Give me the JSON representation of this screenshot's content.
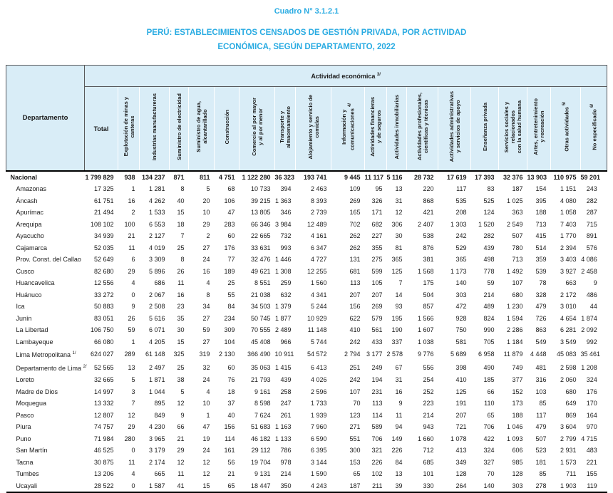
{
  "titles": {
    "cuadro": "Cuadro N° 3.1.2.1",
    "main": "PERÚ: ESTABLECIMIENTOS CENSADOS DE GESTIÓN PRIVADA, POR ACTIVIDAD\nECONÓMICA, SEGÚN DEPARTAMENTO, 2022"
  },
  "colors": {
    "title_blue": "#29abe2",
    "header_bg": "#d9edf7"
  },
  "table": {
    "department_header": "Departamento",
    "activity_header": {
      "label": "Actividad económica ",
      "sup": "3/"
    },
    "total_label": "Total",
    "columns": [
      {
        "label": "Explotación de minas y\ncanteras",
        "sup": ""
      },
      {
        "label": "Industrias manufactureras",
        "sup": ""
      },
      {
        "label": "Suministro de electricidad",
        "sup": ""
      },
      {
        "label": "Suministro de agua,\nalcantarillado",
        "sup": ""
      },
      {
        "label": "Construcción",
        "sup": ""
      },
      {
        "label": "Comercio al por mayor\ny al por menor",
        "sup": ""
      },
      {
        "label": "Transporte y\nalmacenamiento",
        "sup": ""
      },
      {
        "label": "Alojamiento y servicio de\ncomidas",
        "sup": ""
      },
      {
        "label": "Información y\ncomunicaciones ",
        "sup": "4/"
      },
      {
        "label": "Actividades financieras\ny de seguros",
        "sup": ""
      },
      {
        "label": "Actividades inmobiliarias",
        "sup": ""
      },
      {
        "label": "Actividades profesionales,\ncientíficas y técnicas",
        "sup": ""
      },
      {
        "label": "Actividades administrativas\ny servicios de apoyo",
        "sup": ""
      },
      {
        "label": "Enseñanza privada",
        "sup": ""
      },
      {
        "label": "Servicios sociales y\nrelacionados\ncon la salud humana",
        "sup": ""
      },
      {
        "label": "Artes, entretenimiento\ny recreación",
        "sup": ""
      },
      {
        "label": "Otras actividades ",
        "sup": "5/"
      },
      {
        "label": "No especificado ",
        "sup": "6/"
      }
    ],
    "rows": [
      {
        "name": "Nacional",
        "sup": "",
        "bold": true,
        "values": [
          "1 799 829",
          "938",
          "134 237",
          "871",
          "811",
          "4 751",
          "1 122 280",
          "36 323",
          "193 741",
          "9 445",
          "11 117",
          "5 116",
          "28 732",
          "17 619",
          "17 393",
          "32 376",
          "13 903",
          "110 975",
          "59 201"
        ]
      },
      {
        "name": "Amazonas",
        "sup": "",
        "bold": false,
        "values": [
          "17 325",
          "1",
          "1 281",
          "8",
          "5",
          "68",
          "10 733",
          "394",
          "2 463",
          "109",
          "95",
          "13",
          "220",
          "117",
          "83",
          "187",
          "154",
          "1 151",
          "243"
        ]
      },
      {
        "name": "Áncash",
        "sup": "",
        "bold": false,
        "values": [
          "61 751",
          "16",
          "4 262",
          "40",
          "20",
          "106",
          "39 215",
          "1 363",
          "8 393",
          "269",
          "326",
          "31",
          "868",
          "535",
          "525",
          "1 025",
          "395",
          "4 080",
          "282"
        ]
      },
      {
        "name": "Apurímac",
        "sup": "",
        "bold": false,
        "values": [
          "21 494",
          "2",
          "1 533",
          "15",
          "10",
          "47",
          "13 805",
          "346",
          "2 739",
          "165",
          "171",
          "12",
          "421",
          "208",
          "124",
          "363",
          "188",
          "1 058",
          "287"
        ]
      },
      {
        "name": "Arequipa",
        "sup": "",
        "bold": false,
        "values": [
          "108 102",
          "100",
          "6 553",
          "18",
          "29",
          "283",
          "66 346",
          "3 984",
          "12 489",
          "702",
          "682",
          "306",
          "2 407",
          "1 303",
          "1 520",
          "2 549",
          "713",
          "7 403",
          "715"
        ]
      },
      {
        "name": "Ayacucho",
        "sup": "",
        "bold": false,
        "values": [
          "34 939",
          "21",
          "2 127",
          "7",
          "2",
          "60",
          "22 665",
          "732",
          "4 161",
          "262",
          "227",
          "30",
          "538",
          "242",
          "282",
          "507",
          "415",
          "1 770",
          "891"
        ]
      },
      {
        "name": "Cajamarca",
        "sup": "",
        "bold": false,
        "values": [
          "52 035",
          "11",
          "4 019",
          "25",
          "27",
          "176",
          "33 631",
          "993",
          "6 347",
          "262",
          "355",
          "81",
          "876",
          "529",
          "439",
          "780",
          "514",
          "2 394",
          "576"
        ]
      },
      {
        "name": "Prov. Const. del Callao",
        "sup": "",
        "bold": false,
        "values": [
          "52 649",
          "6",
          "3 309",
          "8",
          "24",
          "77",
          "32 476",
          "1 446",
          "4 727",
          "131",
          "275",
          "365",
          "381",
          "365",
          "498",
          "713",
          "359",
          "3 403",
          "4 086"
        ]
      },
      {
        "name": "Cusco",
        "sup": "",
        "bold": false,
        "values": [
          "82 680",
          "29",
          "5 896",
          "26",
          "16",
          "189",
          "49 621",
          "1 308",
          "12 255",
          "681",
          "599",
          "125",
          "1 568",
          "1 173",
          "778",
          "1 492",
          "539",
          "3 927",
          "2 458"
        ]
      },
      {
        "name": "Huancavelica",
        "sup": "",
        "bold": false,
        "values": [
          "12 556",
          "4",
          "686",
          "11",
          "4",
          "25",
          "8 551",
          "259",
          "1 560",
          "113",
          "105",
          "7",
          "175",
          "140",
          "59",
          "107",
          "78",
          "663",
          "9"
        ]
      },
      {
        "name": "Huánuco",
        "sup": "",
        "bold": false,
        "values": [
          "33 272",
          "0",
          "2 067",
          "16",
          "8",
          "55",
          "21 038",
          "632",
          "4 341",
          "207",
          "207",
          "14",
          "504",
          "303",
          "214",
          "680",
          "328",
          "2 172",
          "486"
        ]
      },
      {
        "name": "Ica",
        "sup": "",
        "bold": false,
        "values": [
          "50 883",
          "9",
          "2 508",
          "23",
          "34",
          "84",
          "34 503",
          "1 379",
          "5 244",
          "156",
          "269",
          "93",
          "857",
          "472",
          "489",
          "1 230",
          "479",
          "3 010",
          "44"
        ]
      },
      {
        "name": "Junín",
        "sup": "",
        "bold": false,
        "values": [
          "83 051",
          "26",
          "5 616",
          "35",
          "27",
          "234",
          "50 745",
          "1 877",
          "10 929",
          "622",
          "579",
          "195",
          "1 566",
          "928",
          "824",
          "1 594",
          "726",
          "4 654",
          "1 874"
        ]
      },
      {
        "name": "La Libertad",
        "sup": "",
        "bold": false,
        "values": [
          "106 750",
          "59",
          "6 071",
          "30",
          "59",
          "309",
          "70 555",
          "2 489",
          "11 148",
          "410",
          "561",
          "190",
          "1 607",
          "750",
          "990",
          "2 286",
          "863",
          "6 281",
          "2 092"
        ]
      },
      {
        "name": "Lambayeque",
        "sup": "",
        "bold": false,
        "values": [
          "66 080",
          "1",
          "4 205",
          "15",
          "27",
          "104",
          "45 408",
          "966",
          "5 744",
          "242",
          "433",
          "337",
          "1 038",
          "581",
          "705",
          "1 184",
          "549",
          "3 549",
          "992"
        ]
      },
      {
        "name": "Lima Metropolitana ",
        "sup": "1/",
        "bold": false,
        "values": [
          "624 027",
          "289",
          "61 148",
          "325",
          "319",
          "2 130",
          "366 490",
          "10 911",
          "54 572",
          "2 794",
          "3 177",
          "2 578",
          "9 776",
          "5 689",
          "6 958",
          "11 879",
          "4 448",
          "45 083",
          "35 461"
        ]
      },
      {
        "name": "Departamento de Lima ",
        "sup": "2/",
        "bold": false,
        "values": [
          "52 565",
          "13",
          "2 497",
          "25",
          "32",
          "60",
          "35 063",
          "1 415",
          "6 413",
          "251",
          "249",
          "67",
          "556",
          "398",
          "490",
          "749",
          "481",
          "2 598",
          "1 208"
        ]
      },
      {
        "name": "Loreto",
        "sup": "",
        "bold": false,
        "values": [
          "32 665",
          "5",
          "1 871",
          "38",
          "24",
          "76",
          "21 793",
          "439",
          "4 026",
          "242",
          "194",
          "31",
          "254",
          "410",
          "185",
          "377",
          "316",
          "2 060",
          "324"
        ]
      },
      {
        "name": "Madre de Dios",
        "sup": "",
        "bold": false,
        "values": [
          "14 997",
          "3",
          "1 044",
          "5",
          "4",
          "18",
          "9 161",
          "258",
          "2 596",
          "107",
          "231",
          "16",
          "252",
          "125",
          "66",
          "152",
          "103",
          "680",
          "176"
        ]
      },
      {
        "name": "Moquegua",
        "sup": "",
        "bold": false,
        "values": [
          "13 332",
          "7",
          "895",
          "12",
          "10",
          "37",
          "8 598",
          "247",
          "1 733",
          "70",
          "113",
          "9",
          "223",
          "191",
          "110",
          "173",
          "85",
          "649",
          "170"
        ]
      },
      {
        "name": "Pasco",
        "sup": "",
        "bold": false,
        "values": [
          "12 807",
          "12",
          "849",
          "9",
          "1",
          "40",
          "7 624",
          "261",
          "1 939",
          "123",
          "114",
          "11",
          "214",
          "207",
          "65",
          "188",
          "117",
          "869",
          "164"
        ]
      },
      {
        "name": "Piura",
        "sup": "",
        "bold": false,
        "values": [
          "74 757",
          "29",
          "4 230",
          "66",
          "47",
          "156",
          "51 683",
          "1 163",
          "7 960",
          "271",
          "589",
          "94",
          "943",
          "721",
          "706",
          "1 046",
          "479",
          "3 604",
          "970"
        ]
      },
      {
        "name": "Puno",
        "sup": "",
        "bold": false,
        "values": [
          "71 984",
          "280",
          "3 965",
          "21",
          "19",
          "114",
          "46 182",
          "1 133",
          "6 590",
          "551",
          "706",
          "149",
          "1 660",
          "1 078",
          "422",
          "1 093",
          "507",
          "2 799",
          "4 715"
        ]
      },
      {
        "name": "San Martín",
        "sup": "",
        "bold": false,
        "values": [
          "46 525",
          "0",
          "3 179",
          "29",
          "24",
          "161",
          "29 112",
          "786",
          "6 395",
          "300",
          "321",
          "226",
          "712",
          "413",
          "324",
          "606",
          "523",
          "2 931",
          "483"
        ]
      },
      {
        "name": "Tacna",
        "sup": "",
        "bold": false,
        "values": [
          "30 875",
          "11",
          "2 174",
          "12",
          "12",
          "56",
          "19 704",
          "978",
          "3 144",
          "153",
          "226",
          "84",
          "685",
          "349",
          "327",
          "985",
          "181",
          "1 573",
          "221"
        ]
      },
      {
        "name": "Tumbes",
        "sup": "",
        "bold": false,
        "values": [
          "13 206",
          "4",
          "665",
          "11",
          "12",
          "21",
          "9 131",
          "214",
          "1 590",
          "65",
          "102",
          "13",
          "101",
          "128",
          "70",
          "128",
          "85",
          "711",
          "155"
        ]
      },
      {
        "name": "Ucayali",
        "sup": "",
        "bold": false,
        "values": [
          "28 522",
          "0",
          "1 587",
          "41",
          "15",
          "65",
          "18 447",
          "350",
          "4 243",
          "187",
          "211",
          "39",
          "330",
          "264",
          "140",
          "303",
          "278",
          "1 903",
          "119"
        ]
      }
    ]
  }
}
